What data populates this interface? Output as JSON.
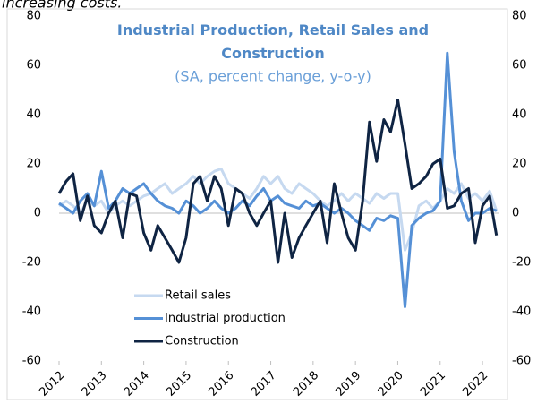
{
  "header_text": "increasing costs.",
  "chart_data": {
    "type": "line",
    "title": "Industrial Production, Retail Sales and Construction",
    "subtitle": "(SA, percent change,  y-o-y)",
    "x": [
      2012,
      2012.17,
      2012.33,
      2012.5,
      2012.67,
      2012.83,
      2013,
      2013.17,
      2013.33,
      2013.5,
      2013.67,
      2013.83,
      2014,
      2014.17,
      2014.33,
      2014.5,
      2014.67,
      2014.83,
      2015,
      2015.17,
      2015.33,
      2015.5,
      2015.67,
      2015.83,
      2016,
      2016.17,
      2016.33,
      2016.5,
      2016.67,
      2016.83,
      2017,
      2017.17,
      2017.33,
      2017.5,
      2017.67,
      2017.83,
      2018,
      2018.17,
      2018.33,
      2018.5,
      2018.67,
      2018.83,
      2019,
      2019.17,
      2019.33,
      2019.5,
      2019.67,
      2019.83,
      2020,
      2020.17,
      2020.33,
      2020.5,
      2020.67,
      2020.83,
      2021,
      2021.17,
      2021.33,
      2021.5,
      2021.67,
      2021.83,
      2022,
      2022.17,
      2022.33
    ],
    "series": [
      {
        "name": "Retail sales",
        "color": "#c6d9f0",
        "values": [
          3,
          5,
          3,
          0,
          5,
          3,
          5,
          0,
          3,
          5,
          3,
          5,
          7,
          8,
          10,
          12,
          8,
          10,
          12,
          15,
          12,
          15,
          17,
          18,
          12,
          10,
          8,
          6,
          10,
          15,
          12,
          15,
          10,
          8,
          12,
          10,
          8,
          5,
          3,
          5,
          8,
          5,
          8,
          6,
          4,
          8,
          6,
          8,
          8,
          -15,
          -8,
          3,
          5,
          2,
          5,
          10,
          8,
          12,
          6,
          8,
          5,
          9,
          1
        ]
      },
      {
        "name": "Industrial production",
        "color": "#5590d6",
        "values": [
          4,
          2,
          0,
          5,
          8,
          3,
          17,
          2,
          5,
          10,
          8,
          10,
          12,
          8,
          5,
          3,
          2,
          0,
          5,
          3,
          0,
          2,
          5,
          2,
          0,
          2,
          5,
          3,
          7,
          10,
          5,
          7,
          4,
          3,
          2,
          5,
          3,
          4,
          2,
          0,
          2,
          0,
          -3,
          -5,
          -7,
          -2,
          -3,
          -1,
          -2,
          -38,
          -5,
          -2,
          0,
          1,
          5,
          65,
          25,
          5,
          -3,
          0,
          0,
          2,
          1
        ]
      },
      {
        "name": "Construction",
        "color": "#0f2443",
        "values": [
          8,
          13,
          16,
          -3,
          7,
          -5,
          -8,
          0,
          5,
          -10,
          8,
          7,
          -8,
          -15,
          -5,
          -10,
          -15,
          -20,
          -10,
          12,
          15,
          5,
          15,
          10,
          -5,
          10,
          8,
          0,
          -5,
          0,
          5,
          -20,
          0,
          -18,
          -10,
          -5,
          0,
          5,
          -12,
          12,
          0,
          -10,
          -15,
          5,
          37,
          21,
          38,
          33,
          46,
          28,
          10,
          12,
          15,
          20,
          22,
          2,
          3,
          8,
          10,
          -12,
          3,
          7,
          -9
        ]
      }
    ],
    "xlim": [
      2012,
      2022.4
    ],
    "xticks": [
      2012,
      2013,
      2014,
      2015,
      2016,
      2017,
      2018,
      2019,
      2020,
      2021,
      2022
    ],
    "ylim": [
      -60,
      80
    ],
    "yticks": [
      -60,
      -40,
      -20,
      0,
      20,
      40,
      60,
      80
    ],
    "y2lim": [
      -60,
      80
    ],
    "y2ticks": [
      -60,
      -40,
      -20,
      0,
      20,
      40,
      60,
      80
    ],
    "legend": "lower-left"
  }
}
